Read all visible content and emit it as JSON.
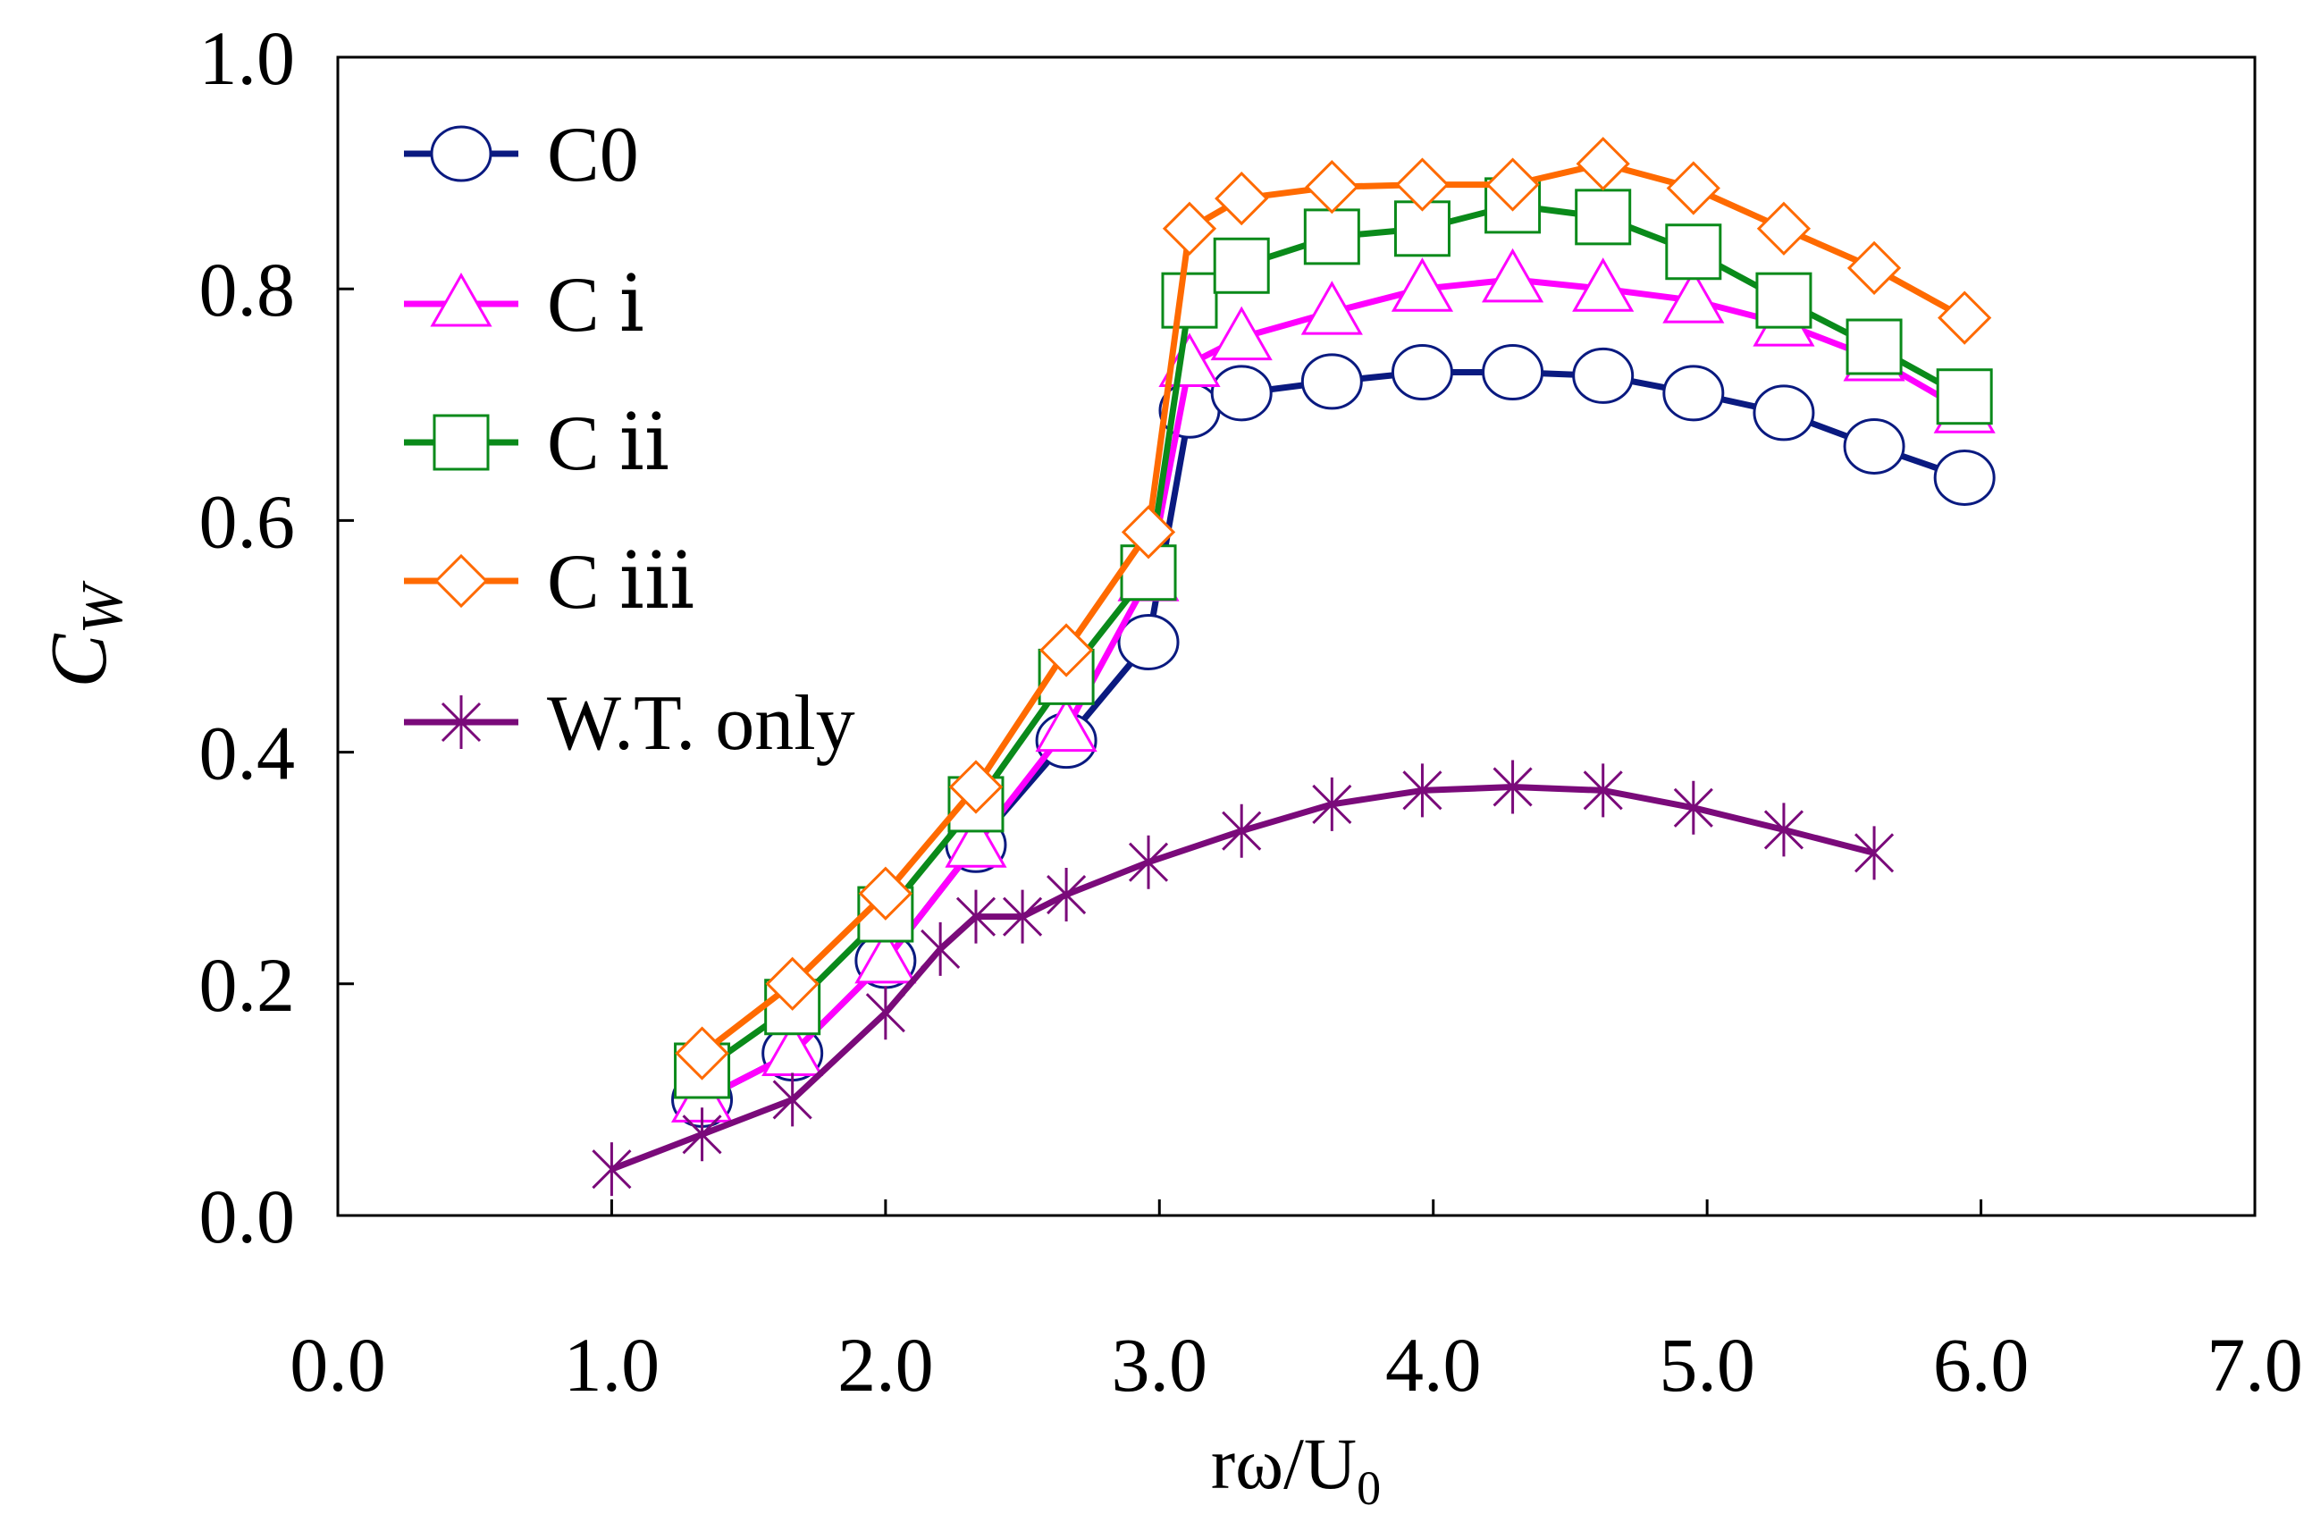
{
  "chart_data": {
    "type": "line",
    "title": "",
    "xlabel": "rω/U",
    "xlabel_sub": "0",
    "ylabel": "C",
    "ylabel_sub": "W",
    "xlim": [
      0.0,
      7.0
    ],
    "ylim": [
      0.0,
      1.0
    ],
    "xticks": [
      0.0,
      1.0,
      2.0,
      3.0,
      4.0,
      5.0,
      6.0,
      7.0
    ],
    "yticks": [
      0.0,
      0.2,
      0.4,
      0.6,
      0.8,
      1.0
    ],
    "xtick_labels": [
      "0.0",
      "1.0",
      "2.0",
      "3.0",
      "4.0",
      "5.0",
      "6.0",
      "7.0"
    ],
    "ytick_labels": [
      "0.0",
      "0.2",
      "0.4",
      "0.6",
      "0.8",
      "1.0"
    ],
    "grid": false,
    "legend_position": "top-left",
    "series": [
      {
        "name": "C0",
        "color": "#0a1a80",
        "marker": "circle",
        "x": [
          1.33,
          1.66,
          2.0,
          2.33,
          2.66,
          2.96,
          3.11,
          3.3,
          3.63,
          3.96,
          4.29,
          4.62,
          4.95,
          5.28,
          5.61,
          5.94
        ],
        "y": [
          0.1,
          0.14,
          0.22,
          0.32,
          0.41,
          0.495,
          0.695,
          0.71,
          0.72,
          0.728,
          0.728,
          0.725,
          0.71,
          0.693,
          0.664,
          0.637
        ]
      },
      {
        "name": "C ⅰ",
        "color": "#ff00ff",
        "marker": "triangle",
        "x": [
          1.33,
          1.66,
          2.0,
          2.33,
          2.66,
          2.96,
          3.11,
          3.3,
          3.63,
          3.96,
          4.29,
          4.62,
          4.95,
          5.28,
          5.61,
          5.94
        ],
        "y": [
          0.1,
          0.14,
          0.22,
          0.32,
          0.42,
          0.55,
          0.735,
          0.758,
          0.78,
          0.8,
          0.808,
          0.8,
          0.79,
          0.77,
          0.74,
          0.695
        ]
      },
      {
        "name": "C ⅱ",
        "color": "#0a8a1a",
        "marker": "square",
        "x": [
          1.33,
          1.66,
          2.0,
          2.33,
          2.66,
          2.96,
          3.11,
          3.3,
          3.63,
          3.96,
          4.29,
          4.62,
          4.95,
          5.28,
          5.61,
          5.94
        ],
        "y": [
          0.125,
          0.18,
          0.26,
          0.355,
          0.465,
          0.555,
          0.79,
          0.82,
          0.845,
          0.852,
          0.872,
          0.862,
          0.832,
          0.79,
          0.75,
          0.707
        ]
      },
      {
        "name": "C ⅲ",
        "color": "#ff6a00",
        "marker": "diamond",
        "x": [
          1.33,
          1.66,
          2.0,
          2.33,
          2.66,
          2.96,
          3.11,
          3.3,
          3.63,
          3.96,
          4.29,
          4.62,
          4.95,
          5.28,
          5.61,
          5.94
        ],
        "y": [
          0.14,
          0.2,
          0.278,
          0.37,
          0.488,
          0.59,
          0.852,
          0.878,
          0.888,
          0.89,
          0.89,
          0.908,
          0.887,
          0.852,
          0.818,
          0.775
        ]
      },
      {
        "name": "W.T. only",
        "color": "#7a0a7a",
        "marker": "star",
        "x": [
          1.0,
          1.33,
          1.66,
          2.0,
          2.2,
          2.33,
          2.5,
          2.66,
          2.96,
          3.3,
          3.63,
          3.96,
          4.29,
          4.62,
          4.95,
          5.28,
          5.61
        ],
        "y": [
          0.04,
          0.07,
          0.1,
          0.175,
          0.23,
          0.258,
          0.258,
          0.277,
          0.305,
          0.332,
          0.355,
          0.367,
          0.37,
          0.367,
          0.352,
          0.333,
          0.313
        ]
      }
    ]
  }
}
